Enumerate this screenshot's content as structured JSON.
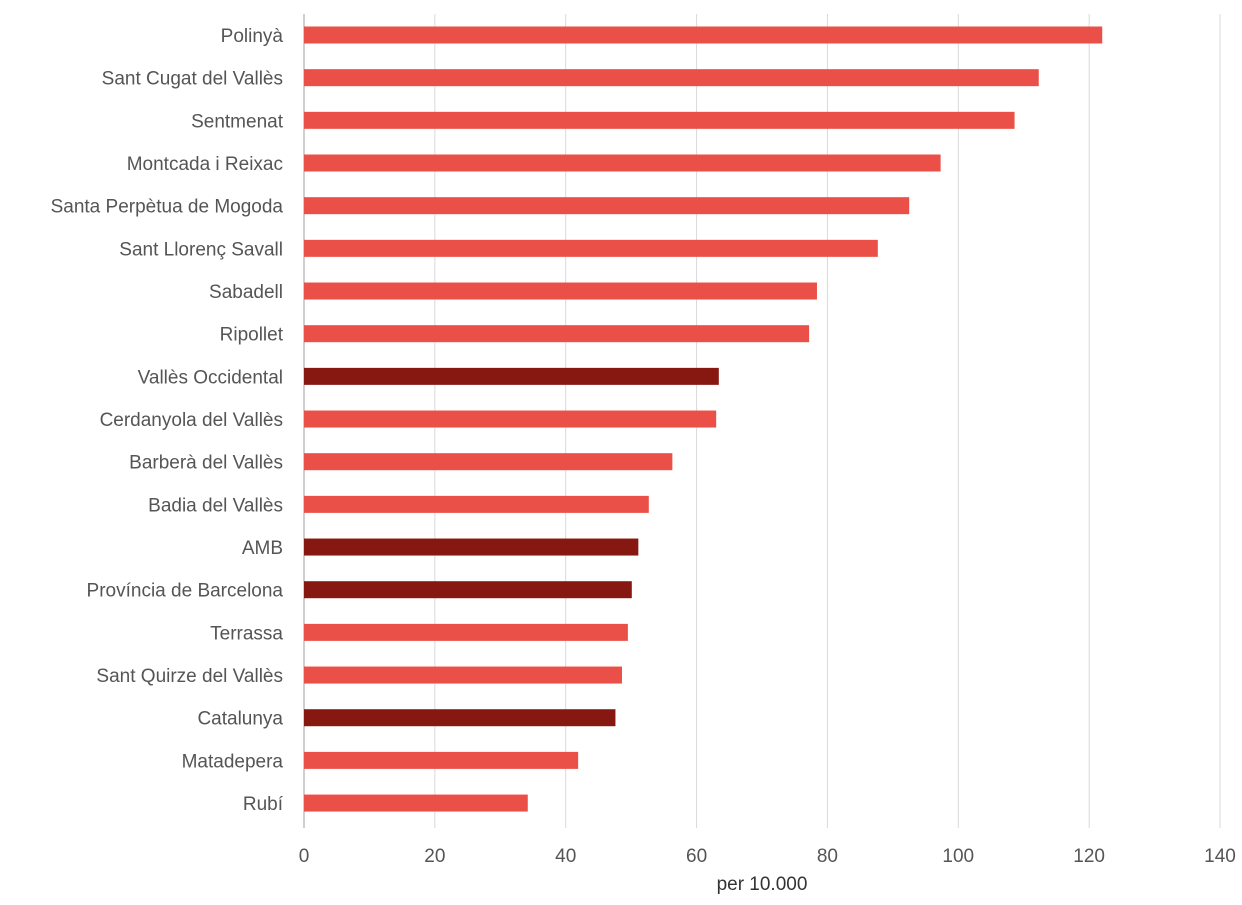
{
  "chart_data": {
    "type": "bar",
    "orientation": "horizontal",
    "title": "",
    "xlabel": "per 10.000",
    "ylabel": "",
    "xlim": [
      0,
      140
    ],
    "xticks": [
      0,
      20,
      40,
      60,
      80,
      100,
      120,
      140
    ],
    "grid": "vertical",
    "legend": "none",
    "colors": {
      "municipality": "#ea5048",
      "aggregate": "#861711"
    },
    "categories": [
      "Polinyà",
      "Sant Cugat del Vallès",
      "Sentmenat",
      "Montcada i Reixac",
      "Santa Perpètua de Mogoda",
      "Sant Llorenç Savall",
      "Sabadell",
      "Ripollet",
      "Vallès Occidental",
      "Cerdanyola del Vallès",
      "Barberà del Vallès",
      "Badia del Vallès",
      "AMB",
      "Província de Barcelona",
      "Terrassa",
      "Sant Quirze del Vallès",
      "Catalunya",
      "Matadepera",
      "Rubí"
    ],
    "values": [
      122.0,
      112.3,
      108.6,
      97.3,
      92.5,
      87.7,
      78.4,
      77.2,
      63.4,
      63.0,
      56.3,
      52.7,
      51.1,
      50.1,
      49.5,
      48.6,
      47.6,
      41.9,
      34.2
    ],
    "highlight": [
      false,
      false,
      false,
      false,
      false,
      false,
      false,
      false,
      true,
      false,
      false,
      false,
      true,
      true,
      false,
      false,
      true,
      false,
      false
    ]
  }
}
